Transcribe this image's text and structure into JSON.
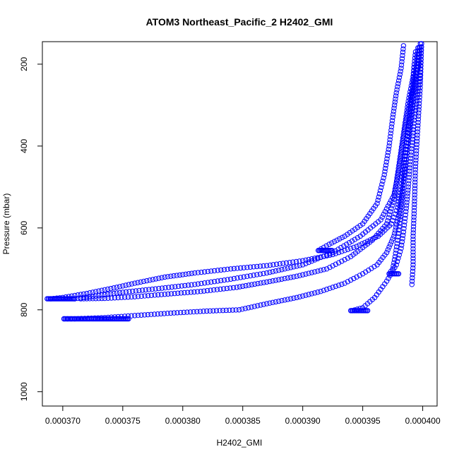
{
  "chart_data": {
    "type": "scatter",
    "title": "ATOM3 Northeast_Pacific_2 H2402_GMI",
    "xlabel": "H2402_GMI",
    "ylabel": "Pressure (mbar)",
    "xlim": [
      0.0003683,
      0.0004012
    ],
    "ylim": [
      1035,
      145
    ],
    "y_reversed": true,
    "grid": false,
    "color": "#0000ff",
    "marker": "open-circle",
    "x_ticks": [
      {
        "value": 0.00037,
        "label": "0.000370"
      },
      {
        "value": 0.000375,
        "label": "0.000375"
      },
      {
        "value": 0.00038,
        "label": "0.000380"
      },
      {
        "value": 0.000385,
        "label": "0.000385"
      },
      {
        "value": 0.00039,
        "label": "0.000390"
      },
      {
        "value": 0.000395,
        "label": "0.000395"
      },
      {
        "value": 0.0004,
        "label": "0.000400"
      }
    ],
    "y_ticks": [
      {
        "value": 200,
        "label": "200"
      },
      {
        "value": 400,
        "label": "400"
      },
      {
        "value": 600,
        "label": "600"
      },
      {
        "value": 800,
        "label": "800"
      },
      {
        "value": 1000,
        "label": "1000"
      }
    ],
    "profiles": [
      {
        "x": [
          0.0003998,
          0.0003997,
          0.0003993,
          0.000399,
          0.0003988,
          0.0003986,
          0.0003984,
          0.0003982,
          0.0003979,
          0.0003974,
          0.0003963,
          0.0003945,
          0.0003925,
          0.00039,
          0.000387,
          0.000384,
          0.000381,
          0.0003785,
          0.000376,
          0.0003745,
          0.000372,
          0.00037,
          0.000369
        ],
        "y": [
          150,
          200,
          250,
          300,
          350,
          400,
          450,
          500,
          550,
          590,
          620,
          645,
          665,
          680,
          692,
          700,
          710,
          720,
          735,
          745,
          760,
          770,
          773
        ]
      },
      {
        "x": [
          0.0003996,
          0.0003994,
          0.000399,
          0.0003986,
          0.0003983,
          0.000398,
          0.0003976,
          0.0003965,
          0.0003948,
          0.0003925,
          0.00039,
          0.000387,
          0.000384,
          0.000381,
          0.000378,
          0.000375,
          0.0003725,
          0.000371
        ],
        "y": [
          160,
          220,
          280,
          340,
          400,
          460,
          520,
          580,
          620,
          660,
          690,
          710,
          725,
          738,
          748,
          757,
          767,
          773
        ]
      },
      {
        "x": [
          0.0003994,
          0.0003992,
          0.0003988,
          0.0003985,
          0.0003982,
          0.0003979,
          0.0003976,
          0.000397,
          0.0003958,
          0.000394,
          0.000392,
          0.0003895,
          0.000387,
          0.0003845,
          0.0003815,
          0.0003785,
          0.000376,
          0.0003735,
          0.0003715
        ],
        "y": [
          170,
          230,
          290,
          350,
          410,
          470,
          530,
          590,
          630,
          670,
          700,
          718,
          732,
          745,
          755,
          762,
          768,
          772,
          773
        ]
      },
      {
        "x": [
          0.0003997,
          0.0003995,
          0.0003992,
          0.0003989,
          0.0003986,
          0.0003983,
          0.000398,
          0.0003976,
          0.000397,
          0.0003962,
          0.000395,
          0.0003935,
          0.0003915,
          0.0003895,
          0.000387,
          0.0003847,
          0.000382,
          0.000379,
          0.000376,
          0.0003735,
          0.000371,
          0.0003701
        ],
        "y": [
          160,
          230,
          300,
          370,
          440,
          510,
          570,
          620,
          660,
          690,
          712,
          735,
          755,
          770,
          785,
          800,
          803,
          808,
          814,
          819,
          822,
          822
        ]
      },
      {
        "x": [
          0.0003999,
          0.0003998,
          0.0003995,
          0.0003992,
          0.000399,
          0.0003988,
          0.0003986,
          0.0003984,
          0.0003982,
          0.0003978,
          0.000397,
          0.000396,
          0.000395,
          0.0003941
        ],
        "y": [
          150,
          220,
          290,
          360,
          430,
          500,
          560,
          610,
          650,
          690,
          730,
          770,
          795,
          802
        ]
      },
      {
        "x": [
          0.0003984,
          0.0003982,
          0.0003978,
          0.0003975,
          0.0003972,
          0.0003968,
          0.0003962,
          0.000395,
          0.0003935,
          0.0003922,
          0.0003913
        ],
        "y": [
          155,
          210,
          270,
          330,
          400,
          470,
          540,
          590,
          620,
          640,
          655
        ]
      },
      {
        "x": [
          0.0003993,
          0.0003991,
          0.0003988,
          0.0003985,
          0.0003983,
          0.0003981,
          0.0003979,
          0.0003977,
          0.0003975,
          0.0003972
        ],
        "y": [
          200,
          280,
          360,
          440,
          520,
          580,
          630,
          670,
          700,
          712
        ]
      },
      {
        "x": [
          0.0003999,
          0.0003998,
          0.0003996,
          0.0003994,
          0.0003993,
          0.0003992,
          0.0003992,
          0.0003991
        ],
        "y": [
          150,
          250,
          350,
          450,
          550,
          620,
          690,
          738
        ]
      }
    ],
    "clusters": [
      {
        "x_from": 0.0003687,
        "x_to": 0.000371,
        "y": 773
      },
      {
        "x_from": 0.0003701,
        "x_to": 0.0003755,
        "y": 822
      },
      {
        "x_from": 0.0003913,
        "x_to": 0.0003925,
        "y": 655
      },
      {
        "x_from": 0.000394,
        "x_to": 0.0003955,
        "y": 802
      },
      {
        "x_from": 0.0003972,
        "x_to": 0.000398,
        "y": 712
      }
    ]
  }
}
